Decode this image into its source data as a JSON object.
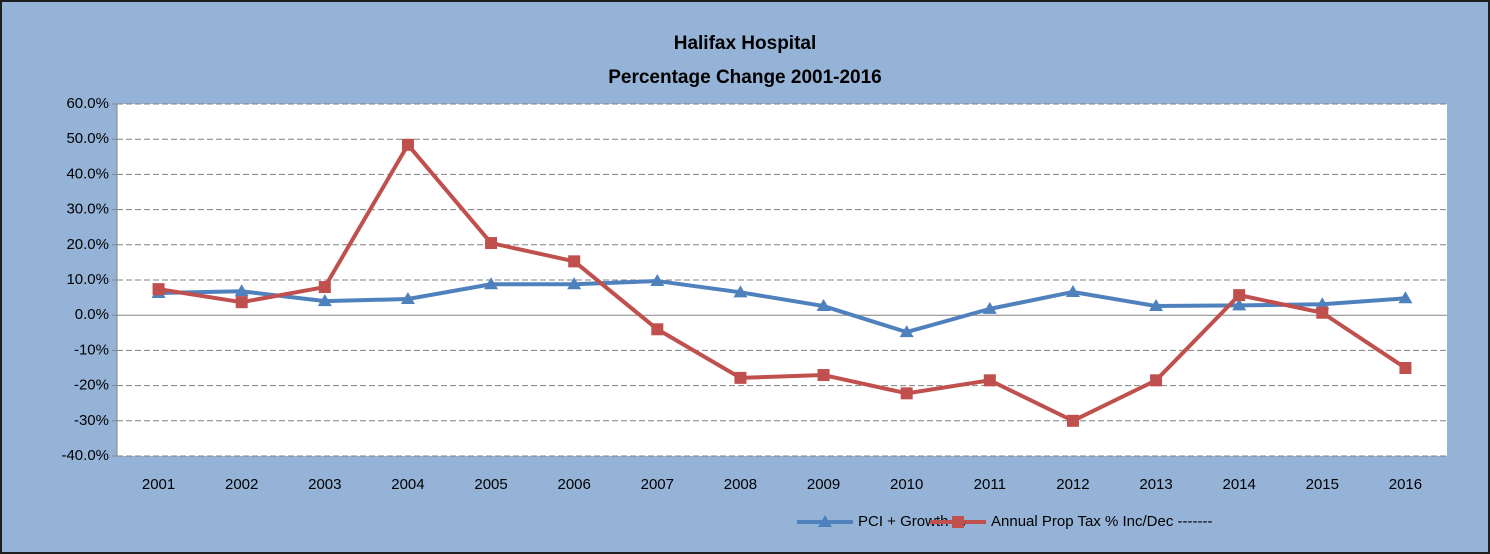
{
  "chart_data": {
    "type": "line",
    "title": "Halifax Hospital",
    "subtitle": "Percentage Change 2001-2016",
    "categories": [
      "2001",
      "2002",
      "2003",
      "2004",
      "2005",
      "2006",
      "2007",
      "2008",
      "2009",
      "2010",
      "2011",
      "2012",
      "2013",
      "2014",
      "2015",
      "2016"
    ],
    "series": [
      {
        "name": "PCI + Growth %",
        "color": "#4f81bd",
        "marker": "triangle",
        "values": [
          6.3,
          6.8,
          4,
          4.6,
          8.8,
          8.8,
          9.7,
          6.5,
          2.6,
          -4.8,
          1.8,
          6.6,
          2.6,
          2.8,
          3.1,
          4.8
        ]
      },
      {
        "name": "Annual Prop Tax % Inc/Dec -------",
        "color": "#c0504d",
        "marker": "square",
        "values": [
          7.4,
          3.7,
          8,
          48.4,
          20.5,
          15.3,
          -4,
          -17.8,
          -17,
          -22.2,
          -18.5,
          -30,
          -18.5,
          5.7,
          0.7,
          -15
        ]
      }
    ],
    "ylim": [
      -40,
      60
    ],
    "yticks": [
      {
        "value": -40,
        "label": "-40.0%"
      },
      {
        "value": -30,
        "label": "-30%"
      },
      {
        "value": -20,
        "label": "-20%"
      },
      {
        "value": -10,
        "label": "-10%"
      },
      {
        "value": 0,
        "label": "0.0%"
      },
      {
        "value": 10,
        "label": "10.0%"
      },
      {
        "value": 20,
        "label": "20.0%"
      },
      {
        "value": 30,
        "label": "30.0%"
      },
      {
        "value": 40,
        "label": "40.0%"
      },
      {
        "value": 50,
        "label": "50.0%"
      },
      {
        "value": 60,
        "label": "60.0%"
      }
    ],
    "grid": true,
    "legend": "bottom-right"
  }
}
